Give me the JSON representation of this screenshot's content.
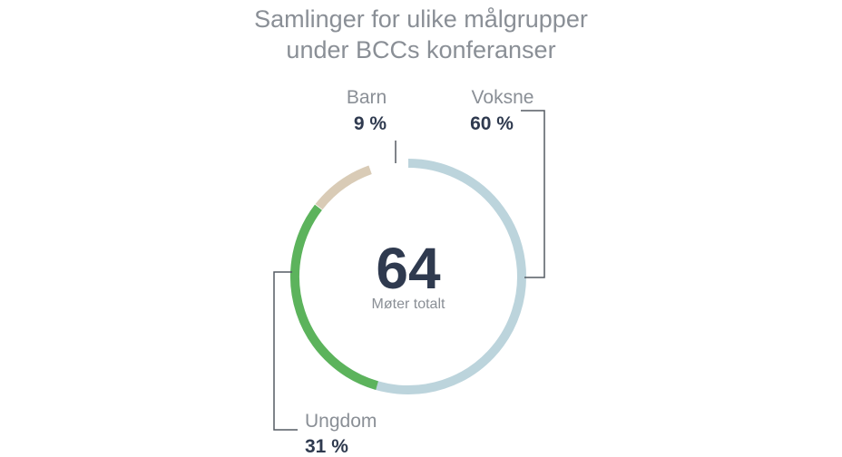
{
  "chart_data": {
    "type": "pie",
    "title_lines": [
      "Samlinger for ulike målgrupper",
      "under BCCs konferanser"
    ],
    "center_value": "64",
    "center_label": "Møter totalt",
    "slices": [
      {
        "name": "Barn",
        "value": 9,
        "value_label": "9 %",
        "color": "#d9cbb6"
      },
      {
        "name": "Voksne",
        "value": 60,
        "value_label": "60 %",
        "color": "#bcd4dc"
      },
      {
        "name": "Ungdom",
        "value": 31,
        "value_label": "31 %",
        "color": "#5cb35c"
      }
    ],
    "connector_color": "#555b63",
    "legend": "none"
  }
}
